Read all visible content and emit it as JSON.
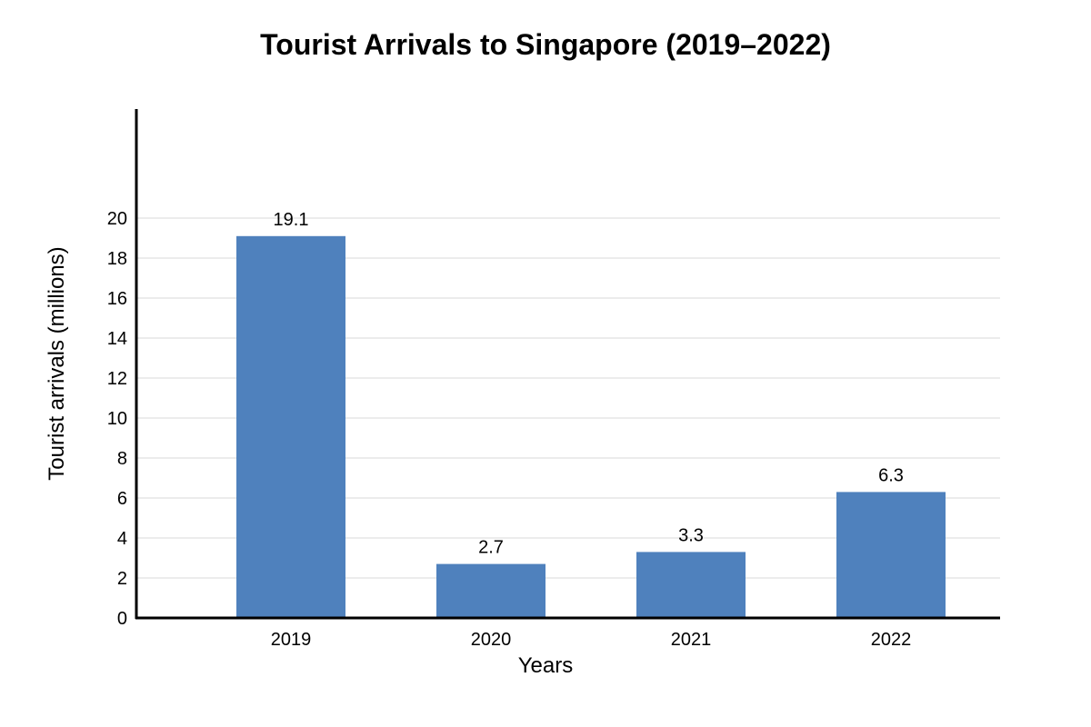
{
  "chart_data": {
    "type": "bar",
    "title": "Tourist Arrivals to Singapore (2019–2022)",
    "xlabel": "Years",
    "ylabel": "Tourist arrivals (millions)",
    "categories": [
      "2019",
      "2020",
      "2021",
      "2022"
    ],
    "values": [
      19.1,
      2.7,
      3.3,
      6.3
    ],
    "data_labels": [
      "19.1",
      "2.7",
      "3.3",
      "6.3"
    ],
    "yticks": [
      0,
      2,
      4,
      6,
      8,
      10,
      12,
      14,
      16,
      18,
      20
    ],
    "ylim": [
      0,
      25
    ],
    "grid": true,
    "bar_color": "#4f81bd",
    "grid_color": "#d9d9d9",
    "axis_color": "#000000"
  }
}
